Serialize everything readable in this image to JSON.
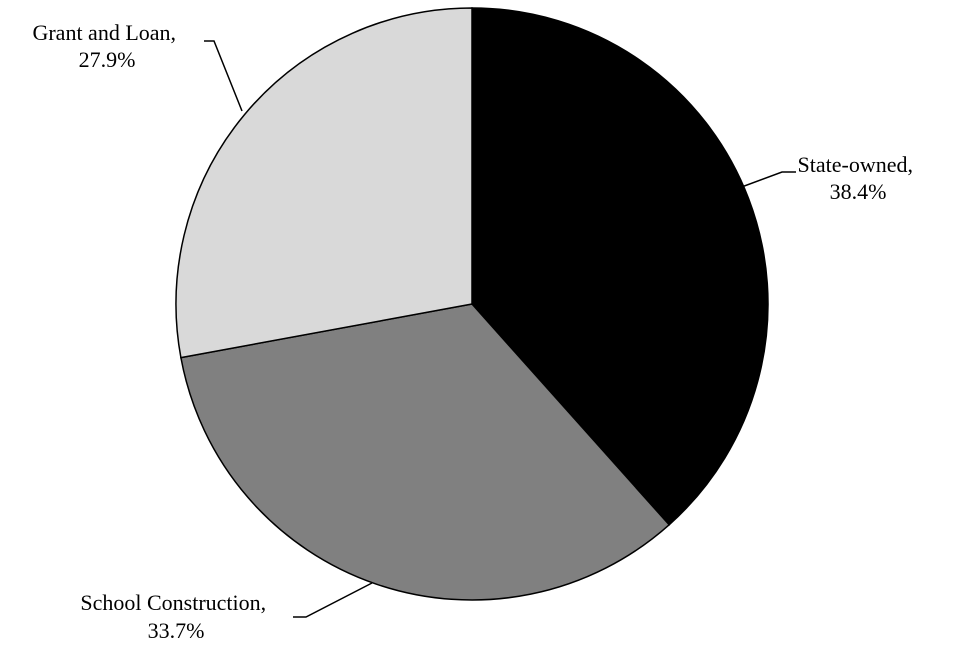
{
  "chart_data": {
    "type": "pie",
    "title": "",
    "legend": "none",
    "start_angle_deg": 0,
    "direction": "clockwise",
    "slices": [
      {
        "label": "State-owned",
        "value": 38.4,
        "value_label": "38.4%",
        "color": "#000000"
      },
      {
        "label": "School Construction",
        "value": 33.7,
        "value_label": "33.7%",
        "color": "#808080"
      },
      {
        "label": "Grant and Loan",
        "value": 27.9,
        "value_label": "27.9%",
        "color": "#d9d9d9"
      }
    ]
  }
}
